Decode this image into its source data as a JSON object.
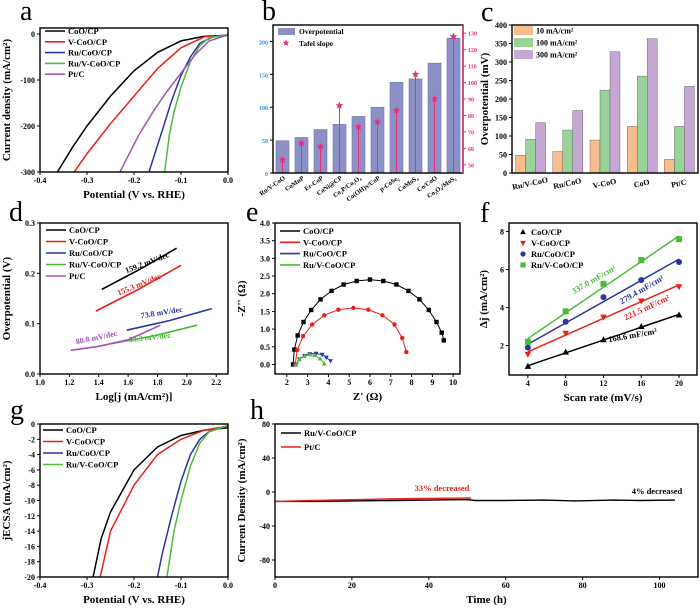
{
  "panel_letters": [
    "a",
    "b",
    "c",
    "d",
    "e",
    "f",
    "g",
    "h"
  ],
  "chart_data": [
    {
      "panel": "a",
      "type": "line",
      "xlabel": "Potential (V vs. RHE)",
      "ylabel": "Current density (mA/cm²)",
      "xlim": [
        -0.4,
        0
      ],
      "ylim": [
        -300,
        13
      ],
      "xticks": [
        "-0.4",
        "-0.3",
        "-0.2",
        "-0.1",
        "0.0"
      ],
      "yticks": [
        "-300",
        "-200",
        "-100",
        "0"
      ],
      "legend": "top-left",
      "series": [
        {
          "name": "CoO/CP",
          "color": "#000000",
          "points": [
            [
              0,
              -3
            ],
            [
              -0.05,
              -5
            ],
            [
              -0.1,
              -15
            ],
            [
              -0.15,
              -40
            ],
            [
              -0.2,
              -80
            ],
            [
              -0.25,
              -135
            ],
            [
              -0.3,
              -200
            ],
            [
              -0.33,
              -245
            ],
            [
              -0.363,
              -300
            ]
          ]
        },
        {
          "name": "V-CoO/CP",
          "color": "#e8201a",
          "points": [
            [
              0,
              -3
            ],
            [
              -0.05,
              -6
            ],
            [
              -0.1,
              -30
            ],
            [
              -0.15,
              -75
            ],
            [
              -0.2,
              -135
            ],
            [
              -0.25,
              -195
            ],
            [
              -0.3,
              -260
            ],
            [
              -0.327,
              -300
            ]
          ]
        },
        {
          "name": "Ru/CoO/CP",
          "color": "#2b34a0",
          "points": [
            [
              0,
              -2
            ],
            [
              -0.03,
              -5
            ],
            [
              -0.06,
              -20
            ],
            [
              -0.08,
              -50
            ],
            [
              -0.1,
              -90
            ],
            [
              -0.12,
              -145
            ],
            [
              -0.14,
              -210
            ],
            [
              -0.168,
              -300
            ]
          ]
        },
        {
          "name": "Ru/V-CoO/CP",
          "color": "#4cbb3a",
          "points": [
            [
              0,
              -2
            ],
            [
              -0.04,
              -8
            ],
            [
              -0.06,
              -25
            ],
            [
              -0.08,
              -60
            ],
            [
              -0.1,
              -115
            ],
            [
              -0.115,
              -170
            ],
            [
              -0.125,
              -220
            ],
            [
              -0.135,
              -300
            ]
          ]
        },
        {
          "name": "Pt/C",
          "color": "#a552b8",
          "points": [
            [
              0,
              -2
            ],
            [
              -0.04,
              -15
            ],
            [
              -0.07,
              -45
            ],
            [
              -0.1,
              -85
            ],
            [
              -0.13,
              -125
            ],
            [
              -0.16,
              -170
            ],
            [
              -0.19,
              -220
            ],
            [
              -0.23,
              -300
            ]
          ]
        }
      ]
    },
    {
      "panel": "b",
      "type": "bar",
      "categories": [
        "Ru/V-CoO",
        "CoMnP",
        "Er-CoP",
        "CoNi@CP",
        "Co₂P/Co₃O₄",
        "Co(OH)x/CoP",
        "p-CoSe₂",
        "CoMoS₄",
        "Co/CoO",
        "Co₃O₄/MoS₂"
      ],
      "ylim": [
        0,
        225
      ],
      "yticks": [
        "0",
        "50",
        "100",
        "150",
        "200"
      ],
      "y2lim": [
        45,
        135
      ],
      "y2ticks": [
        "50",
        "60",
        "70",
        "80",
        "90",
        "100",
        "110",
        "120",
        "130"
      ],
      "legend": "top-left",
      "colors": {
        "bar": "#8d90c6",
        "star": "#e8307a",
        "left_ticks": "#3b8fd6"
      },
      "series": [
        {
          "name": "Overpotential",
          "axis": "left",
          "values": [
            49,
            54,
            66,
            74,
            86,
            100,
            138,
            143,
            167,
            205
          ]
        },
        {
          "name": "Tafel slope",
          "axis": "right",
          "values": [
            53,
            63,
            61,
            86,
            73,
            76,
            83,
            105,
            90,
            128
          ]
        }
      ]
    },
    {
      "panel": "c",
      "type": "bar",
      "ylabel": "Overpotential (mV)",
      "categories": [
        "Ru/V-CoO",
        "Ru/CoO",
        "V-CoO",
        "CoO",
        "Pt/C"
      ],
      "ylim": [
        0,
        400
      ],
      "yticks": [
        "0",
        "50",
        "100",
        "150",
        "200",
        "250",
        "300",
        "350",
        "400"
      ],
      "legend": "top-left",
      "series": [
        {
          "name": "10 mA/cm²",
          "color": "#f7bd8c",
          "values": [
            48,
            58,
            89,
            126,
            37
          ]
        },
        {
          "name": "100 mA/cm²",
          "color": "#9ad39a",
          "values": [
            91,
            116,
            224,
            262,
            126
          ]
        },
        {
          "name": "300 mA/cm²",
          "color": "#c4a8d3",
          "values": [
            136,
            169,
            328,
            363,
            234
          ]
        }
      ]
    },
    {
      "panel": "d",
      "type": "line",
      "xlabel": "Log[j (mA/cm²)]",
      "ylabel": "Overpotential (V)",
      "xlim": [
        1.0,
        2.28
      ],
      "ylim": [
        0,
        0.3
      ],
      "xticks": [
        "1.0",
        "1.2",
        "1.4",
        "1.6",
        "1.8",
        "2.0",
        "2.2"
      ],
      "yticks": [
        "0.0",
        "0.1",
        "0.2",
        "0.3"
      ],
      "legend": "top-left",
      "series": [
        {
          "name": "CoO/CP",
          "color": "#000000",
          "points": [
            [
              1.42,
              0.168
            ],
            [
              1.68,
              0.208
            ],
            [
              1.93,
              0.25
            ]
          ],
          "annotation": "159.2 mV/dec"
        },
        {
          "name": "V-CoO/CP",
          "color": "#e8201a",
          "points": [
            [
              1.38,
              0.125
            ],
            [
              1.67,
              0.168
            ],
            [
              1.96,
              0.216
            ]
          ],
          "annotation": "155.3 mV/dec"
        },
        {
          "name": "Ru/CoO/CP",
          "color": "#2b34a0",
          "points": [
            [
              1.59,
              0.087
            ],
            [
              1.88,
              0.106
            ],
            [
              2.17,
              0.13
            ]
          ],
          "annotation": "73.8 mV/dec"
        },
        {
          "name": "Ru/V-CoO/CP",
          "color": "#4cbb3a",
          "points": [
            [
              1.48,
              0.06
            ],
            [
              1.78,
              0.076
            ],
            [
              2.07,
              0.097
            ]
          ],
          "annotation": "53.3 mV/dec"
        },
        {
          "name": "Pt/C",
          "color": "#a552b8",
          "points": [
            [
              1.21,
              0.047
            ],
            [
              1.4,
              0.055
            ],
            [
              1.6,
              0.068
            ],
            [
              1.82,
              0.097
            ]
          ],
          "annotation": "80.8 mV/dec"
        }
      ]
    },
    {
      "panel": "e",
      "type": "scatter",
      "xlabel": "Z' (Ω)",
      "ylabel": "-Z'' (Ω)",
      "xlim": [
        1.43,
        10.33
      ],
      "ylim": [
        -0.27,
        4.0
      ],
      "xticks": [
        "2",
        "3",
        "4",
        "5",
        "6",
        "7",
        "8",
        "9",
        "10"
      ],
      "yticks": [
        "0.0",
        "0.5",
        "1.0",
        "1.5",
        "2.0",
        "2.5",
        "3.0",
        "3.5",
        "4.0"
      ],
      "legend": "top-left",
      "series": [
        {
          "name": "CoO/CP",
          "color": "#000000",
          "marker": "square",
          "points": [
            [
              2.3,
              0
            ],
            [
              2.36,
              0.42
            ],
            [
              2.52,
              0.82
            ],
            [
              2.8,
              1.2
            ],
            [
              3.17,
              1.54
            ],
            [
              3.62,
              1.84
            ],
            [
              4.15,
              2.08
            ],
            [
              4.73,
              2.26
            ],
            [
              5.36,
              2.36
            ],
            [
              6.0,
              2.4
            ],
            [
              6.64,
              2.36
            ],
            [
              7.27,
              2.26
            ],
            [
              7.85,
              2.08
            ],
            [
              8.38,
              1.84
            ],
            [
              8.83,
              1.54
            ],
            [
              9.2,
              1.2
            ],
            [
              9.45,
              0.9
            ],
            [
              9.55,
              0.68
            ]
          ]
        },
        {
          "name": "V-CoO/CP",
          "color": "#e8201a",
          "marker": "circle",
          "points": [
            [
              2.4,
              0
            ],
            [
              2.5,
              0.41
            ],
            [
              2.78,
              0.8
            ],
            [
              3.22,
              1.13
            ],
            [
              3.8,
              1.39
            ],
            [
              4.48,
              1.55
            ],
            [
              5.2,
              1.6
            ],
            [
              5.92,
              1.55
            ],
            [
              6.6,
              1.39
            ],
            [
              7.18,
              1.13
            ],
            [
              7.55,
              0.75
            ],
            [
              7.75,
              0.35
            ]
          ]
        },
        {
          "name": "Ru/CoO/CP",
          "color": "#2b34a0",
          "marker": "triangle-down",
          "points": [
            [
              2.45,
              0
            ],
            [
              2.6,
              0.15
            ],
            [
              2.85,
              0.25
            ],
            [
              3.1,
              0.3
            ],
            [
              3.4,
              0.31
            ],
            [
              3.7,
              0.28
            ],
            [
              3.9,
              0.2
            ],
            [
              4.1,
              0.1
            ]
          ]
        },
        {
          "name": "Ru/V-CoO/CP",
          "color": "#4cbb3a",
          "marker": "triangle-up",
          "points": [
            [
              2.45,
              0
            ],
            [
              2.6,
              0.14
            ],
            [
              2.85,
              0.24
            ],
            [
              3.1,
              0.28
            ],
            [
              3.35,
              0.26
            ],
            [
              3.6,
              0.16
            ],
            [
              3.8,
              0.02
            ]
          ]
        }
      ]
    },
    {
      "panel": "f",
      "type": "scatter",
      "xlabel": "Scan rate (mV/s)",
      "ylabel": "Δj (mA/cm²)",
      "xlim": [
        2,
        21.9
      ],
      "ylim": [
        0.45,
        8.45
      ],
      "xticks": [
        "4",
        "8",
        "12",
        "16",
        "20"
      ],
      "yticks": [
        "2",
        "4",
        "6",
        "8"
      ],
      "legend": "top-left",
      "x": [
        4,
        8,
        12,
        16,
        20
      ],
      "series": [
        {
          "name": "CoO/CP",
          "color": "#000000",
          "marker": "triangle-up",
          "values": [
            0.9,
            1.65,
            2.3,
            3.0,
            3.6
          ],
          "annotation": "168.6 mF/cm²"
        },
        {
          "name": "V-CoO/CP",
          "color": "#e8201a",
          "marker": "triangle-down",
          "values": [
            1.55,
            2.65,
            3.5,
            4.35,
            5.1
          ],
          "annotation": "221.5 mF/cm²"
        },
        {
          "name": "Ru/CoO/CP",
          "color": "#2b34a0",
          "marker": "circle",
          "values": [
            1.9,
            3.25,
            4.55,
            5.45,
            6.4
          ],
          "annotation": "279.4 mF/cm²"
        },
        {
          "name": "Ru/V-CoO/CP",
          "color": "#4cbb3a",
          "marker": "square",
          "values": [
            2.2,
            3.8,
            5.25,
            6.5,
            7.6
          ],
          "annotation": "337.0 mF/cm²"
        }
      ]
    },
    {
      "panel": "g",
      "type": "line",
      "xlabel": "Potential (V vs. RHE)",
      "ylabel": "jECSA (mA/cm²)",
      "xlim": [
        -0.4,
        0
      ],
      "ylim": [
        -20,
        0
      ],
      "xticks": [
        "-0.4",
        "-0.3",
        "-0.2",
        "-0.1",
        "0.0"
      ],
      "yticks": [
        "-20",
        "-18",
        "-16",
        "-14",
        "-12",
        "-10",
        "-8",
        "-6",
        "-4",
        "-2",
        "0"
      ],
      "legend": "top-left",
      "series": [
        {
          "name": "CoO/CP",
          "color": "#000000",
          "points": [
            [
              0,
              -0.5
            ],
            [
              -0.05,
              -0.8
            ],
            [
              -0.1,
              -1.5
            ],
            [
              -0.15,
              -3
            ],
            [
              -0.2,
              -6
            ],
            [
              -0.25,
              -11.5
            ],
            [
              -0.27,
              -15
            ],
            [
              -0.287,
              -20
            ]
          ]
        },
        {
          "name": "V-CoO/CP",
          "color": "#e8201a",
          "points": [
            [
              0,
              -0.3
            ],
            [
              -0.05,
              -0.8
            ],
            [
              -0.1,
              -2
            ],
            [
              -0.15,
              -4
            ],
            [
              -0.2,
              -8
            ],
            [
              -0.25,
              -14
            ],
            [
              -0.272,
              -20
            ]
          ]
        },
        {
          "name": "Ru/CoO/CP",
          "color": "#2b34a0",
          "points": [
            [
              0,
              -0.2
            ],
            [
              -0.04,
              -1
            ],
            [
              -0.06,
              -2
            ],
            [
              -0.08,
              -4
            ],
            [
              -0.1,
              -7.5
            ],
            [
              -0.12,
              -12
            ],
            [
              -0.14,
              -17
            ],
            [
              -0.15,
              -20
            ]
          ]
        },
        {
          "name": "Ru/V-CoO/CP",
          "color": "#4cbb3a",
          "points": [
            [
              0,
              -0.2
            ],
            [
              -0.04,
              -1
            ],
            [
              -0.06,
              -2.5
            ],
            [
              -0.08,
              -5.5
            ],
            [
              -0.1,
              -10
            ],
            [
              -0.115,
              -14
            ],
            [
              -0.13,
              -20
            ]
          ]
        }
      ]
    },
    {
      "panel": "h",
      "type": "line",
      "xlabel": "Time (h)",
      "ylabel": "Current Density (mA/cm²)",
      "xlim": [
        0,
        110
      ],
      "ylim": [
        -100,
        80
      ],
      "xticks": [
        "0",
        "20",
        "40",
        "60",
        "80",
        "100"
      ],
      "yticks": [
        "-80",
        "-40",
        "0",
        "40",
        "80"
      ],
      "legend": "top-left",
      "series": [
        {
          "name": "Ru/V-CoO/CP",
          "color": "#000000",
          "points": [
            [
              0,
              -11
            ],
            [
              10,
              -11
            ],
            [
              20,
              -10.5
            ],
            [
              30,
              -10
            ],
            [
              40,
              -9.5
            ],
            [
              50,
              -9
            ],
            [
              52,
              -10
            ],
            [
              60,
              -10
            ],
            [
              70,
              -9.5
            ],
            [
              78,
              -10.5
            ],
            [
              88,
              -9.5
            ],
            [
              95,
              -10
            ],
            [
              104,
              -9.5
            ]
          ],
          "annotation": "4% decreased"
        },
        {
          "name": "Pt/C",
          "color": "#e8201a",
          "points": [
            [
              0,
              -11
            ],
            [
              10,
              -10
            ],
            [
              22,
              -9
            ],
            [
              30,
              -8
            ],
            [
              40,
              -7.5
            ],
            [
              51,
              -7
            ]
          ],
          "annotation": "33% decreased"
        }
      ]
    }
  ]
}
